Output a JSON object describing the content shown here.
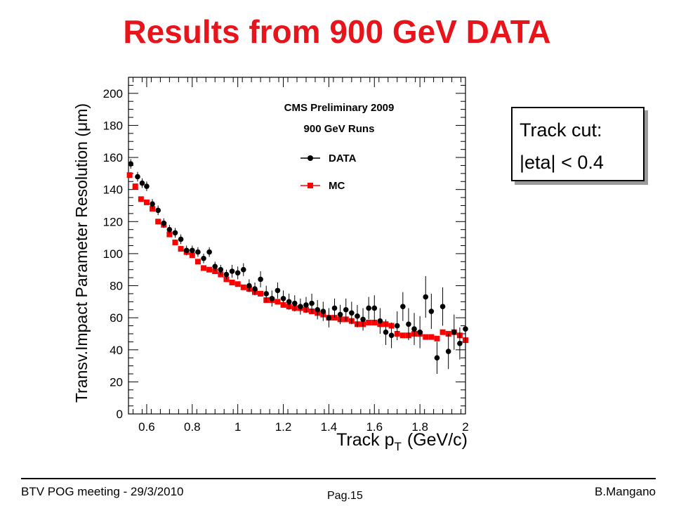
{
  "slide": {
    "title": "Results from 900 GeV DATA",
    "note_line1": "Track cut:",
    "note_line2": "|eta| < 0.4",
    "footer_left": "BTV POG meeting - 29/3/2010",
    "footer_center": "Pag.15",
    "footer_right": "B.Mangano"
  },
  "colors": {
    "title": "#e8141b",
    "data": "#000000",
    "mc": "#ff0000"
  },
  "chart_data": {
    "type": "scatter",
    "ylabel": "Transv.Impact Parameter Resolution (μm)",
    "xlabel_main": "Track p",
    "xlabel_sub": "T",
    "xlabel_unit": "(GeV/c)",
    "legend_title_1": "CMS Preliminary 2009",
    "legend_title_2": "900 GeV Runs",
    "legend_placement": "top-right",
    "xlim": [
      0.52,
      2.0
    ],
    "ylim": [
      0,
      210
    ],
    "x_ticks": [
      0.6,
      0.8,
      1,
      1.2,
      1.4,
      1.6,
      1.8,
      2
    ],
    "x_tick_labels": [
      "0.6",
      "0.8",
      "1",
      "1.2",
      "1.4",
      "1.6",
      "1.8",
      "2"
    ],
    "y_ticks": [
      0,
      20,
      40,
      60,
      80,
      100,
      120,
      140,
      160,
      180,
      200
    ],
    "y_tick_labels": [
      "0",
      "20",
      "40",
      "60",
      "80",
      "100",
      "120",
      "140",
      "160",
      "180",
      "200"
    ],
    "grid": false,
    "series": [
      {
        "name": "DATA",
        "marker": "circle",
        "x": [
          0.53,
          0.56,
          0.58,
          0.6,
          0.625,
          0.65,
          0.675,
          0.7,
          0.725,
          0.75,
          0.775,
          0.8,
          0.825,
          0.85,
          0.875,
          0.9,
          0.925,
          0.95,
          0.975,
          1.0,
          1.025,
          1.05,
          1.075,
          1.1,
          1.125,
          1.15,
          1.175,
          1.2,
          1.225,
          1.25,
          1.275,
          1.3,
          1.325,
          1.35,
          1.375,
          1.4,
          1.425,
          1.45,
          1.475,
          1.5,
          1.525,
          1.55,
          1.575,
          1.6,
          1.625,
          1.65,
          1.675,
          1.7,
          1.725,
          1.75,
          1.775,
          1.8,
          1.825,
          1.85,
          1.875,
          1.9,
          1.925,
          1.95,
          1.975,
          2.0
        ],
        "y": [
          156,
          148,
          144,
          142,
          131,
          127,
          119,
          115,
          113,
          109,
          102,
          102,
          101,
          97,
          101,
          92,
          90,
          87,
          89,
          88,
          90,
          80,
          78,
          84,
          75,
          72,
          77,
          72,
          70,
          69,
          67,
          68,
          69,
          65,
          64,
          60,
          66,
          62,
          65,
          63,
          61,
          59,
          66,
          66,
          58,
          51,
          49,
          55,
          67,
          56,
          53,
          51,
          73,
          64,
          35,
          67,
          39,
          51,
          44,
          53
        ],
        "yerr": [
          3,
          3,
          3,
          3,
          3,
          3,
          3,
          3,
          3,
          3,
          3,
          3,
          3,
          3,
          3,
          3,
          3,
          3,
          4,
          4,
          4,
          4,
          4,
          5,
          5,
          5,
          5,
          5,
          5,
          5,
          5,
          5,
          6,
          6,
          6,
          6,
          6,
          6,
          7,
          7,
          7,
          7,
          7,
          8,
          8,
          8,
          8,
          9,
          9,
          10,
          10,
          10,
          13,
          11,
          10,
          12,
          11,
          11,
          10,
          11
        ]
      },
      {
        "name": "MC",
        "marker": "square",
        "x": [
          0.525,
          0.55,
          0.575,
          0.6,
          0.625,
          0.65,
          0.675,
          0.7,
          0.725,
          0.75,
          0.775,
          0.8,
          0.825,
          0.85,
          0.875,
          0.9,
          0.925,
          0.95,
          0.975,
          1.0,
          1.025,
          1.05,
          1.075,
          1.1,
          1.125,
          1.15,
          1.175,
          1.2,
          1.225,
          1.25,
          1.275,
          1.3,
          1.325,
          1.35,
          1.375,
          1.4,
          1.425,
          1.45,
          1.475,
          1.5,
          1.525,
          1.55,
          1.575,
          1.6,
          1.625,
          1.65,
          1.675,
          1.7,
          1.725,
          1.75,
          1.775,
          1.8,
          1.825,
          1.85,
          1.875,
          1.9,
          1.925,
          1.95,
          1.975,
          2.0
        ],
        "y": [
          149,
          142,
          134,
          132,
          128,
          120,
          118,
          112,
          107,
          103,
          101,
          99,
          95,
          91,
          90,
          89,
          87,
          84,
          82,
          81,
          79,
          78,
          76,
          75,
          71,
          71,
          70,
          68,
          67,
          66,
          66,
          65,
          64,
          63,
          62,
          60,
          60,
          59,
          59,
          58,
          56,
          56,
          57,
          57,
          56,
          56,
          55,
          50,
          49,
          49,
          50,
          50,
          48,
          48,
          47,
          51,
          50,
          51,
          49,
          46
        ]
      }
    ]
  }
}
